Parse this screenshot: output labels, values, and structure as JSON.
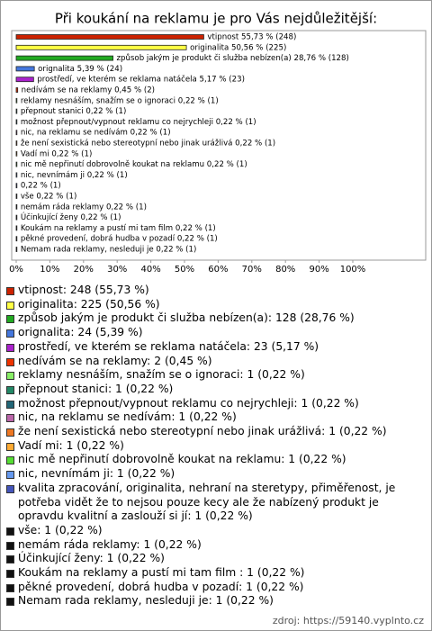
{
  "chart_data": {
    "type": "bar",
    "orientation": "horizontal",
    "title": "Při koukání na reklamu je pro Vás nejdůležitější:",
    "categories": [
      "vtipnost",
      "originalita",
      "způsob jakým je produkt či služba nebízen(a)",
      "orignalita",
      "prostředí, ve kterém se reklama natáčela",
      "nedívám se na reklamy",
      "reklamy nesnáším, snažím se o ignoraci",
      "přepnout stanici",
      "možnost přepnout/vypnout reklamu co nejrychleji",
      "nic, na reklamu se nedívám",
      "že není sexistická nebo stereotypní nebo jinak urážlivá",
      "Vadí mi",
      "nic mě nepřinutí dobrovolně koukat na reklamu",
      "nic, nevnímám ji",
      null,
      "vše",
      "nemám ráda reklamy",
      "Účinkující ženy",
      "Koukám na reklamy a pustí mi tam film ",
      "pěkné provedení, dobrá hudba v pozadí",
      "Nemam rada reklamy, nesleduji je"
    ],
    "values": [
      55.73,
      50.56,
      28.76,
      5.39,
      5.17,
      0.45,
      0.22,
      0.22,
      0.22,
      0.22,
      0.22,
      0.22,
      0.22,
      0.22,
      0.22,
      0.22,
      0.22,
      0.22,
      0.22,
      0.22,
      0.22
    ],
    "value_labels": [
      "vtipnost 55,73 % (248)",
      "originalita 50,56 % (225)",
      "způsob jakým je produkt či služba nebízen(a) 28,76 % (128)",
      "orignalita 5,39 % (24)",
      "prostředí, ve kterém se reklama natáčela 5,17 % (23)",
      "nedívám se na reklamy 0,45 % (2)",
      "reklamy nesnáším, snažím se o ignoraci 0,22 % (1)",
      "přepnout stanici 0,22 % (1)",
      "možnost přepnout/vypnout reklamu co nejrychleji 0,22 % (1)",
      "nic, na reklamu se nedívám 0,22 % (1)",
      "že není sexistická nebo stereotypní nebo jinak urážlivá 0,22 % (1)",
      "Vadí mi 0,22 % (1)",
      "nic mě nepřinutí dobrovolně koukat na reklamu 0,22 % (1)",
      "nic, nevnímám ji 0,22 % (1)",
      "0,22 % (1)",
      "vše 0,22 % (1)",
      "nemám ráda reklamy 0,22 % (1)",
      "Účinkující ženy 0,22 % (1)",
      "Koukám na reklamy a pustí mi tam film  0,22 % (1)",
      "pěkné provedení, dobrá hudba v pozadí 0,22 % (1)",
      "Nemam rada reklamy, nesleduji je 0,22 % (1)"
    ],
    "legend_labels": [
      "vtipnost: 248 (55,73 %)",
      "originalita: 225 (50,56 %)",
      "způsob jakým je produkt či služba nebízen(a): 128 (28,76 %)",
      "orignalita: 24 (5,39 %)",
      "prostředí, ve kterém se reklama natáčela: 23 (5,17 %)",
      "nedívám se na reklamy: 2 (0,45 %)",
      "reklamy nesnáším, snažím se o ignoraci: 1 (0,22 %)",
      "přepnout stanici: 1 (0,22 %)",
      "možnost přepnout/vypnout reklamu co nejrychleji: 1 (0,22 %)",
      "nic, na reklamu se nedívám: 1 (0,22 %)",
      "že není sexistická nebo stereotypní nebo jinak urážlivá: 1 (0,22 %)",
      "Vadí mi: 1 (0,22 %)",
      "nic mě nepřinutí dobrovolně koukat na reklamu: 1 (0,22 %)",
      "nic, nevnímám ji: 1 (0,22 %)",
      "kvalita zpracování, originalita, nehraní na steretypy, přiměřenost, je potřeba vidět že to nejsou pouze kecy ale že nabízený produkt je opravdu kvalitní a zaslouží si jí: 1 (0,22 %)",
      "vše: 1 (0,22 %)",
      "nemám ráda reklamy: 1 (0,22 %)",
      "Účinkující ženy: 1 (0,22 %)",
      "Koukám na reklamy a pustí mi tam film : 1 (0,22 %)",
      "pěkné provedení, dobrá hudba v pozadí: 1 (0,22 %)",
      "Nemam rada reklamy, nesleduji je: 1 (0,22 %)"
    ],
    "colors": [
      "#cc2200",
      "#ffff44",
      "#22aa22",
      "#4477dd",
      "#aa22cc",
      "#ee3300",
      "#88ee66",
      "#228866",
      "#226677",
      "#bb66aa",
      "#ee7722",
      "#ffaa33",
      "#55dd33",
      "#6699ee",
      "#4455bb",
      "#111111",
      "#111111",
      "#111111",
      "#111111",
      "#111111",
      "#111111"
    ],
    "xlim": [
      0,
      100
    ],
    "xticks": [
      {
        "value": 0,
        "label": "0%"
      },
      {
        "value": 10,
        "label": "10%"
      },
      {
        "value": 20,
        "label": "20%"
      },
      {
        "value": 30,
        "label": "30%"
      },
      {
        "value": 40,
        "label": "40%"
      },
      {
        "value": 50,
        "label": "50%"
      },
      {
        "value": 60,
        "label": "60%"
      },
      {
        "value": 70,
        "label": "70%"
      },
      {
        "value": 80,
        "label": "80%"
      },
      {
        "value": 90,
        "label": "90%"
      },
      {
        "value": 100,
        "label": "100%"
      }
    ],
    "source": "zdroj: https://59140.vyplnto.cz"
  }
}
